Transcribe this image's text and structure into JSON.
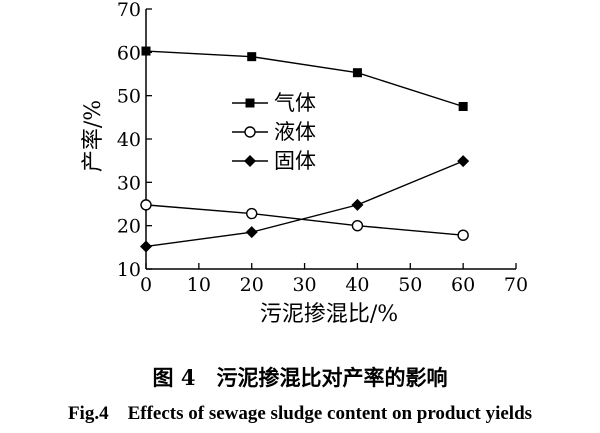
{
  "chart_data": {
    "type": "line",
    "xlabel": "污泥掺混比/%",
    "ylabel": "产率/%",
    "xlim": [
      0,
      70
    ],
    "ylim": [
      10,
      70
    ],
    "xticks": [
      0,
      10,
      20,
      30,
      40,
      50,
      60,
      70
    ],
    "yticks": [
      10,
      20,
      30,
      40,
      50,
      60,
      70
    ],
    "grid": false,
    "legend_position": "center",
    "x": [
      0,
      20,
      40,
      60
    ],
    "series": [
      {
        "name": "气体",
        "marker": "filled-square",
        "values": [
          60.3,
          59.0,
          55.3,
          47.5
        ]
      },
      {
        "name": "液体",
        "marker": "hollow-circle",
        "values": [
          24.8,
          22.8,
          20.0,
          17.8
        ]
      },
      {
        "name": "固体",
        "marker": "filled-diamond",
        "values": [
          15.2,
          18.5,
          24.8,
          34.9
        ]
      }
    ]
  },
  "caption": {
    "cn": "图 4　污泥掺混比对产率的影响",
    "en": "Fig.4　Effects of sewage sludge content on product yields"
  }
}
